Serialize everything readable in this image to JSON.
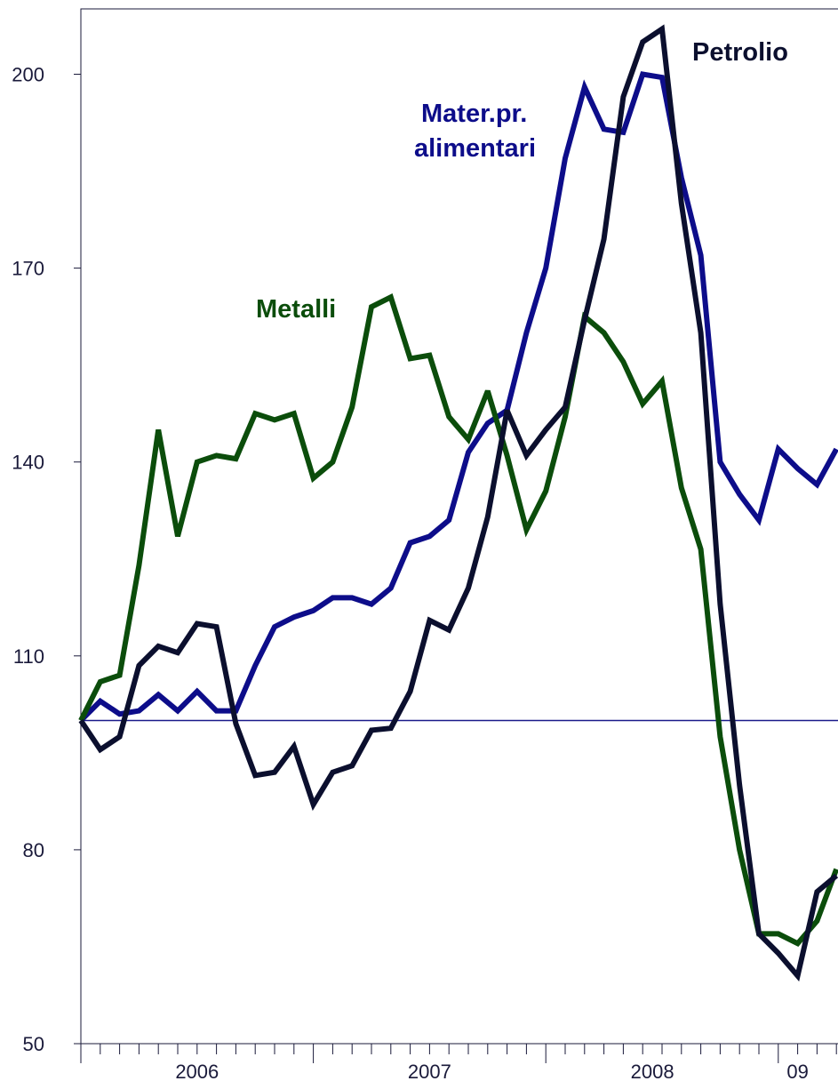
{
  "chart_data": {
    "type": "line",
    "title": "",
    "xlabel": "",
    "ylabel": "",
    "ylim": [
      50,
      210
    ],
    "yticks": [
      50,
      80,
      110,
      140,
      170,
      200
    ],
    "baseline": 100,
    "x_labels": [
      {
        "text": "2006",
        "month": 6
      },
      {
        "text": "2007",
        "month": 18
      },
      {
        "text": "2008",
        "month": 29.5
      },
      {
        "text": "09",
        "month": 37
      }
    ],
    "series": [
      {
        "name": "Petrolio",
        "color": "#0b0f2e",
        "values": [
          100,
          95.5,
          97.5,
          108.5,
          111.5,
          110.5,
          115,
          114.5,
          99.5,
          91.5,
          92,
          96,
          87,
          92,
          93,
          98.5,
          98.8,
          104.5,
          115.5,
          114,
          120.5,
          131.5,
          148,
          141,
          145,
          148.5,
          162,
          174.5,
          196.5,
          205,
          207,
          180,
          160,
          118,
          90,
          67,
          64,
          60.5,
          73.5,
          76
        ]
      },
      {
        "name": "Mater.pr. alimentari",
        "color": "#0d0d8a",
        "values": [
          100,
          103,
          101,
          101.5,
          104,
          101.5,
          104.5,
          101.5,
          101.5,
          108.5,
          114.5,
          116,
          117,
          119,
          119,
          118,
          120.5,
          127.5,
          128.5,
          131,
          141.5,
          146,
          148,
          160,
          170,
          187,
          198,
          191.5,
          191,
          200,
          199.5,
          184,
          172,
          140,
          135,
          131,
          142,
          139,
          136.5,
          142
        ]
      },
      {
        "name": "Metalli",
        "color": "#0b4d0b",
        "values": [
          100,
          106,
          107,
          124,
          145,
          128.5,
          140,
          141,
          140.5,
          147.5,
          146.5,
          147.5,
          137.5,
          140,
          148.5,
          164,
          165.5,
          156,
          156.5,
          147,
          143.5,
          151,
          141,
          129.5,
          135.5,
          147,
          162.5,
          160,
          155.5,
          149,
          152.5,
          136,
          126.5,
          97.5,
          80,
          67,
          67,
          65.5,
          69,
          77
        ]
      }
    ],
    "annotations": [
      "Petrolio",
      "Mater.pr.",
      "alimentari",
      "Metalli"
    ]
  }
}
